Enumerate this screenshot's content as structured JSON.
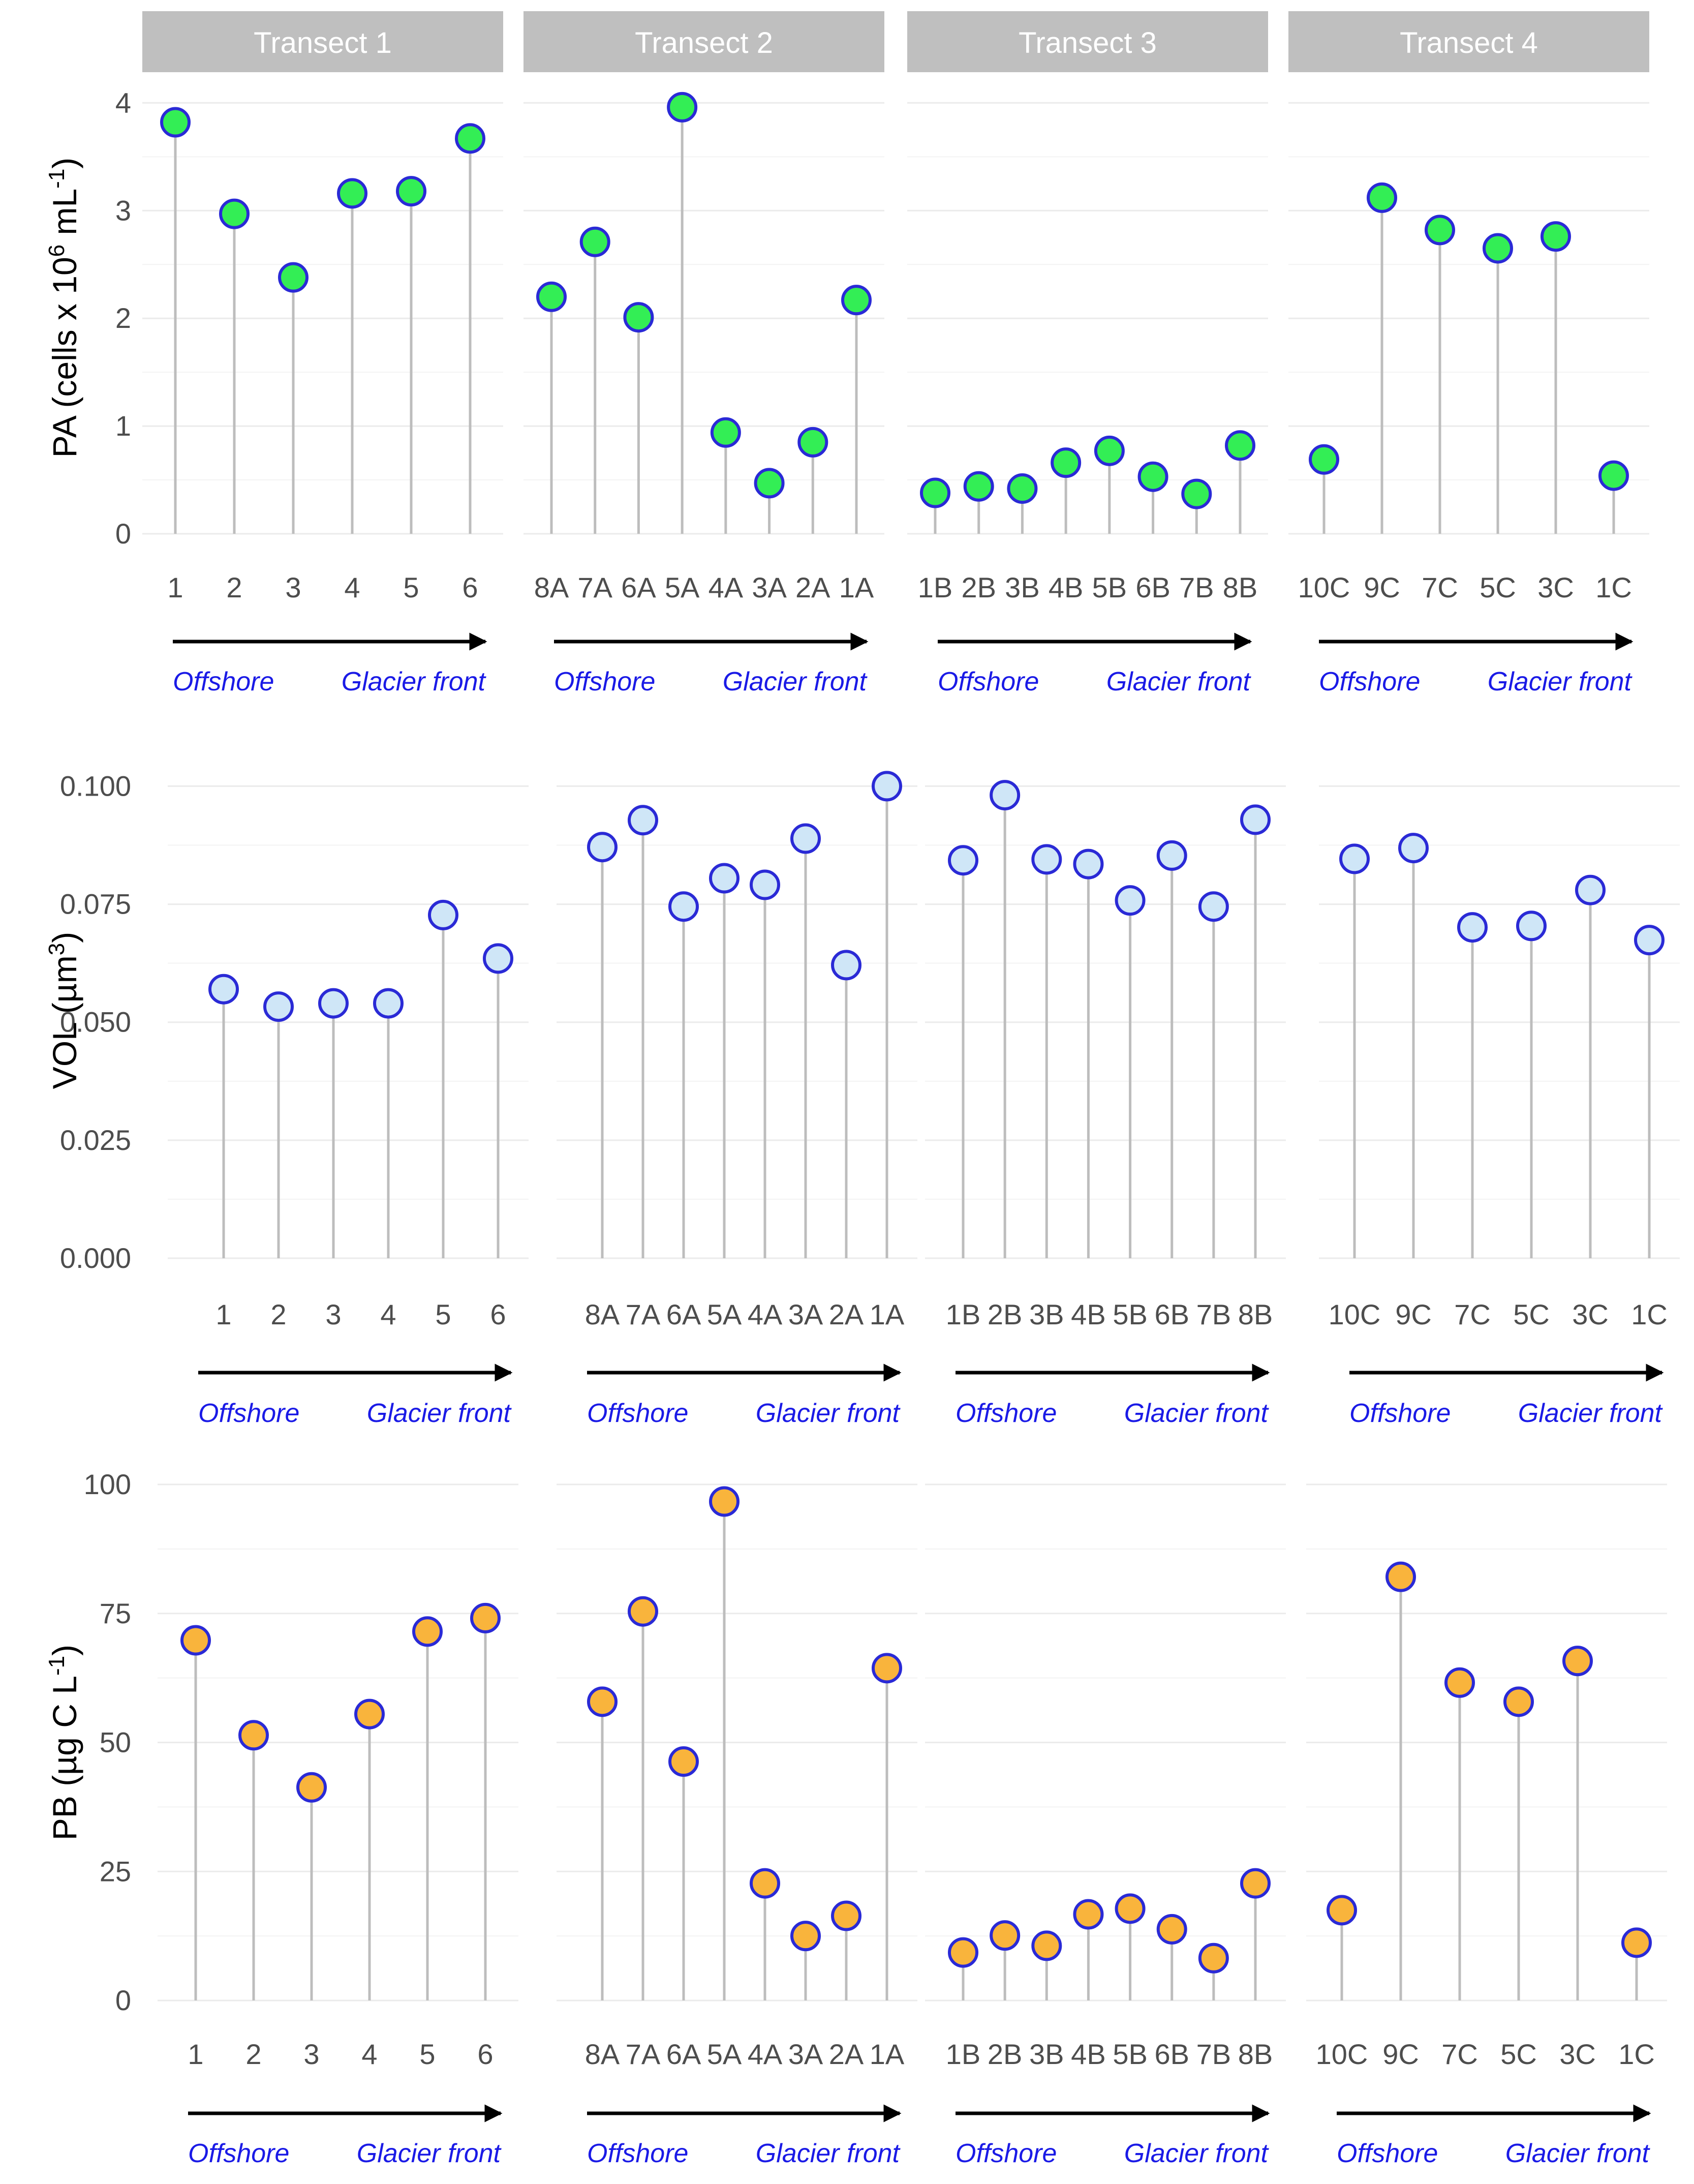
{
  "colors": {
    "stem": "#bdbdbd",
    "grid": "#ebebeb",
    "strip": "#bfbfbf",
    "point_stroke": "#2a2ad6",
    "direction_text": "#1a1ae6",
    "arrow": "#000000"
  },
  "direction": {
    "start": "Offshore",
    "end": "Glacier front"
  },
  "chart_data": {
    "type": "lollipop",
    "facets": [
      "Transect 1",
      "Transect 2",
      "Transect 3",
      "Transect 4"
    ],
    "stations": [
      [
        "1",
        "2",
        "3",
        "4",
        "5",
        "6"
      ],
      [
        "8A",
        "7A",
        "6A",
        "5A",
        "4A",
        "3A",
        "2A",
        "1A"
      ],
      [
        "1B",
        "2B",
        "3B",
        "4B",
        "5B",
        "6B",
        "7B",
        "8B"
      ],
      [
        "10C",
        "9C",
        "7C",
        "5C",
        "3C",
        "1C"
      ]
    ],
    "panels": [
      {
        "ylabel": "PA  (cells x 10^6 mL^-1)",
        "ylim": [
          0,
          4.2
        ],
        "yticks": [
          "0",
          "1",
          "2",
          "3",
          "4"
        ],
        "fill": "#33ee55",
        "values": [
          [
            3.82,
            2.97,
            2.38,
            3.16,
            3.18,
            3.67
          ],
          [
            2.2,
            2.71,
            2.01,
            3.96,
            0.94,
            0.47,
            0.85,
            2.17
          ],
          [
            0.38,
            0.44,
            0.42,
            0.66,
            0.77,
            0.53,
            0.37,
            0.82
          ],
          [
            0.69,
            3.12,
            2.82,
            2.65,
            2.76,
            0.54
          ]
        ]
      },
      {
        "ylabel": "VOL  (µm^3)",
        "ylim": [
          0,
          0.105
        ],
        "yticks": [
          "0.000",
          "0.025",
          "0.050",
          "0.075",
          "0.100"
        ],
        "fill": "#cfe6f7",
        "values": [
          [
            0.057,
            0.0533,
            0.054,
            0.054,
            0.0727,
            0.0635
          ],
          [
            0.0871,
            0.0928,
            0.0745,
            0.0805,
            0.0791,
            0.0889,
            0.0621,
            0.1
          ],
          [
            0.0843,
            0.0981,
            0.0845,
            0.0835,
            0.0758,
            0.0853,
            0.0745,
            0.0929
          ],
          [
            0.0846,
            0.0869,
            0.0701,
            0.0704,
            0.078,
            0.0674
          ]
        ]
      },
      {
        "ylabel": "PB  (µg C L^-1)",
        "ylim": [
          0,
          100
        ],
        "yticks": [
          "0",
          "25",
          "50",
          "75",
          "100"
        ],
        "fill": "#f9b43c",
        "values": [
          [
            69.8,
            51.4,
            41.3,
            55.5,
            71.5,
            74.1
          ],
          [
            57.9,
            75.4,
            46.3,
            96.7,
            22.7,
            12.5,
            16.4,
            64.4
          ],
          [
            9.3,
            12.6,
            10.6,
            16.7,
            17.8,
            13.8,
            8.2,
            22.7
          ],
          [
            17.5,
            82.1,
            61.6,
            57.9,
            65.8,
            11.2
          ]
        ]
      }
    ]
  }
}
